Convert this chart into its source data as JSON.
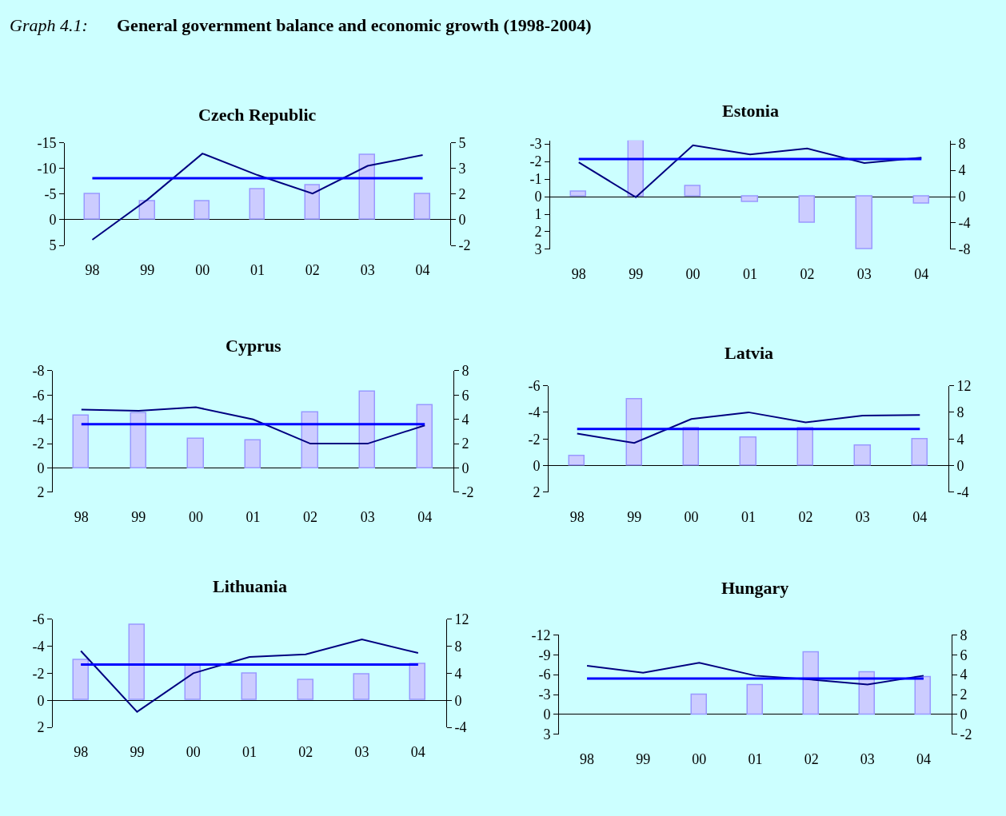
{
  "chart_data": [
    {
      "type": "bar",
      "title": "Czech Republic",
      "annotations": [
        "Graph 4.1:",
        "General government balance and economic growth (1998-2004)"
      ],
      "categories": [
        "98",
        "99",
        "00",
        "01",
        "02",
        "03",
        "04"
      ],
      "ylim": [
        5,
        -15
      ],
      "yticks": [
        5,
        0,
        -5,
        -10,
        -15
      ],
      "y2lim": [
        -1.67,
        5
      ],
      "y2ticks": [
        {
          "value": -1.67,
          "label": "-2"
        },
        0,
        {
          "value": 1.67,
          "label": "2"
        },
        {
          "value": 3.33,
          "label": "3"
        },
        5
      ],
      "series": [
        {
          "type": "bar",
          "color": "#ccccff",
          "values": [
            -5.0,
            -3.7,
            -3.7,
            -5.9,
            -6.8,
            -12.7,
            -5.0
          ]
        },
        {
          "type": "line",
          "axis": "y2",
          "color": "#000080",
          "values": [
            -1.3,
            1.3,
            4.3,
            2.9,
            1.7,
            3.5,
            4.2
          ]
        }
      ],
      "ref_lines": [
        {
          "axis": "y2",
          "value": 2.7,
          "color": "#0000ff"
        }
      ]
    },
    {
      "type": "bar",
      "title": "Estonia",
      "categories": [
        "98",
        "99",
        "00",
        "01",
        "02",
        "03",
        "04"
      ],
      "ylim": [
        3,
        -3.2
      ],
      "yticks": [
        3,
        2,
        1,
        0,
        -1,
        -2,
        -3
      ],
      "y2lim": [
        -8,
        8.53
      ],
      "y2ticks": [
        -8,
        -4,
        0,
        4,
        8
      ],
      "series": [
        {
          "type": "bar",
          "color": "#ccccff",
          "values": [
            -0.3,
            -3.2,
            -0.6,
            0.3,
            1.5,
            3.0,
            0.4
          ]
        },
        {
          "type": "line",
          "axis": "y2",
          "color": "#000080",
          "values": [
            5.2,
            -0.1,
            7.8,
            6.4,
            7.3,
            5.1,
            5.9
          ]
        }
      ],
      "ref_lines": [
        {
          "axis": "y2",
          "value": 5.7,
          "color": "#0000ff"
        }
      ]
    },
    {
      "type": "bar",
      "title": "Cyprus",
      "categories": [
        "98",
        "99",
        "00",
        "01",
        "02",
        "03",
        "04"
      ],
      "ylim": [
        2,
        -8
      ],
      "yticks": [
        2,
        0,
        -2,
        -4,
        -6,
        -8
      ],
      "y2lim": [
        -2,
        8
      ],
      "y2ticks": [
        -2,
        0,
        2,
        4,
        6,
        8
      ],
      "series": [
        {
          "type": "bar",
          "color": "#ccccff",
          "values": [
            -4.3,
            -4.5,
            -2.4,
            -2.3,
            -4.6,
            -6.3,
            -5.2
          ]
        },
        {
          "type": "line",
          "axis": "y2",
          "color": "#000080",
          "values": [
            4.8,
            4.7,
            5.0,
            4.0,
            2.0,
            2.0,
            3.5
          ]
        }
      ],
      "ref_lines": [
        {
          "axis": "y2",
          "value": 3.6,
          "color": "#0000ff"
        }
      ]
    },
    {
      "type": "bar",
      "title": "Latvia",
      "categories": [
        "98",
        "99",
        "00",
        "01",
        "02",
        "03",
        "04"
      ],
      "ylim": [
        2,
        -6
      ],
      "yticks": [
        2,
        0,
        -2,
        -4,
        -6
      ],
      "y2lim": [
        -4,
        12
      ],
      "y2ticks": [
        -4,
        0,
        4,
        8,
        12
      ],
      "series": [
        {
          "type": "bar",
          "color": "#ccccff",
          "values": [
            -0.7,
            -5.0,
            -2.8,
            -2.1,
            -2.8,
            -1.5,
            -2.0
          ]
        },
        {
          "type": "line",
          "axis": "y2",
          "color": "#000080",
          "values": [
            4.8,
            3.4,
            7.0,
            8.0,
            6.5,
            7.5,
            7.6
          ]
        }
      ],
      "ref_lines": [
        {
          "axis": "y2",
          "value": 5.5,
          "color": "#0000ff"
        }
      ]
    },
    {
      "type": "bar",
      "title": "Lithuania",
      "categories": [
        "98",
        "99",
        "00",
        "01",
        "02",
        "03",
        "04"
      ],
      "ylim": [
        2,
        -6
      ],
      "yticks": [
        2,
        0,
        -2,
        -4,
        -6
      ],
      "y2lim": [
        -4,
        12
      ],
      "y2ticks": [
        -4,
        0,
        4,
        8,
        12
      ],
      "series": [
        {
          "type": "bar",
          "color": "#ccccff",
          "values": [
            -3.0,
            -5.6,
            -2.6,
            -2.0,
            -1.5,
            -1.9,
            -2.7
          ]
        },
        {
          "type": "line",
          "axis": "y2",
          "color": "#000080",
          "values": [
            7.3,
            -1.7,
            4.0,
            6.4,
            6.8,
            9.0,
            7.0
          ]
        }
      ],
      "ref_lines": [
        {
          "axis": "y2",
          "value": 5.3,
          "color": "#0000ff"
        }
      ]
    },
    {
      "type": "bar",
      "title": "Hungary",
      "categories": [
        "98",
        "99",
        "00",
        "01",
        "02",
        "03",
        "04"
      ],
      "ylim": [
        3,
        -12
      ],
      "yticks": [
        3,
        0,
        -3,
        -6,
        -9,
        -12
      ],
      "y2lim": [
        -2,
        8
      ],
      "y2ticks": [
        -2,
        0,
        2,
        4,
        6,
        8
      ],
      "series": [
        {
          "type": "bar",
          "color": "#ccccff",
          "values": [
            null,
            null,
            -3.0,
            -4.4,
            -9.3,
            -6.3,
            -5.6
          ]
        },
        {
          "type": "line",
          "axis": "y2",
          "color": "#000080",
          "values": [
            4.9,
            4.2,
            5.2,
            3.9,
            3.5,
            3.0,
            3.9
          ]
        }
      ],
      "ref_lines": [
        {
          "axis": "y2",
          "value": 3.6,
          "color": "#0000ff"
        }
      ]
    }
  ]
}
